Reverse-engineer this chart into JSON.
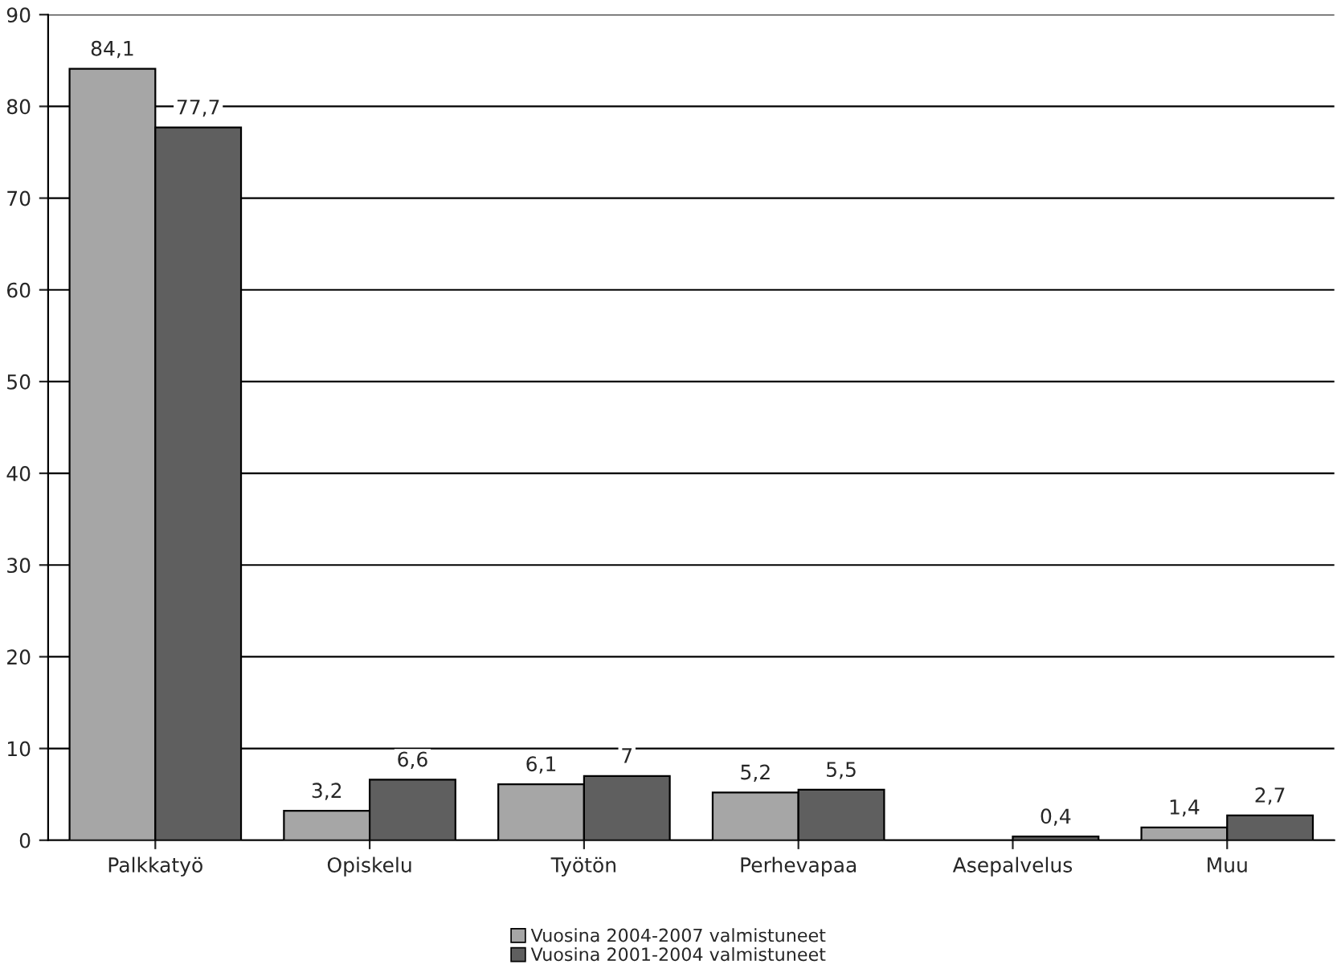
{
  "chart_data": {
    "type": "bar",
    "categories": [
      "Palkkatyö",
      "Opiskelu",
      "Työtön",
      "Perhevapaa",
      "Asepalvelus",
      "Muu"
    ],
    "series": [
      {
        "name": "Vuosina 2004-2007 valmistuneet",
        "color": "#a6a6a6",
        "values": [
          84.1,
          3.2,
          6.1,
          5.2,
          null,
          1.4
        ],
        "value_labels": [
          "84,1",
          "3,2",
          "6,1",
          "5,2",
          null,
          "1,4"
        ]
      },
      {
        "name": "Vuosina 2001-2004 valmistuneet",
        "color": "#5f5f5f",
        "values": [
          77.7,
          6.6,
          7,
          5.5,
          0.4,
          2.7
        ],
        "value_labels": [
          "77,7",
          "6,6",
          "7",
          "5,5",
          "0,4",
          "2,7"
        ]
      }
    ],
    "ylim": [
      0,
      90
    ],
    "yticks": [
      0,
      10,
      20,
      30,
      40,
      50,
      60,
      70,
      80,
      90
    ],
    "grid": "y",
    "legend": "bottom"
  }
}
